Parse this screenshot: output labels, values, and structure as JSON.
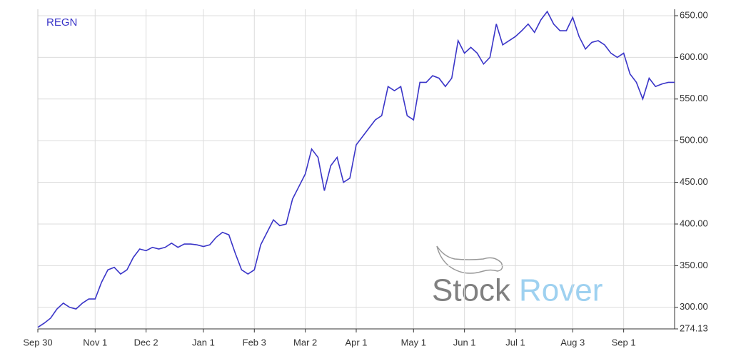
{
  "chart_data": {
    "type": "line",
    "series": [
      {
        "name": "REGN",
        "color": "#3a35c8",
        "values": [
          276,
          281,
          287,
          298,
          305,
          300,
          298,
          305,
          310,
          310,
          330,
          345,
          348,
          340,
          345,
          360,
          370,
          368,
          372,
          370,
          372,
          377,
          372,
          376,
          376,
          375,
          373,
          375,
          384,
          390,
          387,
          365,
          345,
          340,
          345,
          375,
          390,
          405,
          398,
          400,
          430,
          445,
          460,
          490,
          480,
          440,
          470,
          480,
          450,
          455,
          495,
          505,
          515,
          525,
          530,
          565,
          560,
          565,
          530,
          525,
          570,
          570,
          578,
          575,
          565,
          575,
          620,
          605,
          612,
          605,
          592,
          600,
          640,
          615,
          620,
          625,
          632,
          640,
          630,
          645,
          655,
          640,
          632,
          632,
          648,
          625,
          610,
          618,
          620,
          615,
          605,
          600,
          605,
          580,
          570,
          550,
          575,
          565,
          568,
          570,
          570
        ]
      }
    ],
    "categories": [
      "Sep 30",
      null,
      null,
      null,
      null,
      null,
      null,
      null,
      null,
      "Nov 1",
      null,
      null,
      null,
      null,
      null,
      null,
      null,
      "Dec 2",
      null,
      null,
      null,
      null,
      null,
      null,
      null,
      null,
      "Jan 1",
      null,
      null,
      null,
      null,
      null,
      null,
      null,
      "Feb 3",
      null,
      null,
      null,
      null,
      null,
      null,
      null,
      "Mar 2",
      null,
      null,
      null,
      null,
      null,
      null,
      null,
      "Apr 1",
      null,
      null,
      null,
      null,
      null,
      null,
      null,
      null,
      "May 1",
      null,
      null,
      null,
      null,
      null,
      null,
      null,
      "Jun 1",
      null,
      null,
      null,
      null,
      null,
      null,
      null,
      "Jul 1",
      null,
      null,
      null,
      null,
      null,
      null,
      null,
      null,
      "Aug 3",
      null,
      null,
      null,
      null,
      null,
      null,
      null,
      "Sep 1",
      null,
      null,
      null,
      null,
      null,
      null,
      null,
      null
    ],
    "ylim": [
      274.13,
      657.7
    ],
    "yticks": [
      {
        "value": 274.13,
        "label": "274.13"
      },
      {
        "value": 300,
        "label": "300.00"
      },
      {
        "value": 350,
        "label": "350.00"
      },
      {
        "value": 400,
        "label": "400.00"
      },
      {
        "value": 450,
        "label": "450.00"
      },
      {
        "value": 500,
        "label": "500.00"
      },
      {
        "value": 550,
        "label": "550.00"
      },
      {
        "value": 600,
        "label": "600.00"
      },
      {
        "value": 650,
        "label": "650.00"
      }
    ],
    "grid": true,
    "watermark": {
      "first": "Stock",
      "second": "Rover"
    }
  }
}
